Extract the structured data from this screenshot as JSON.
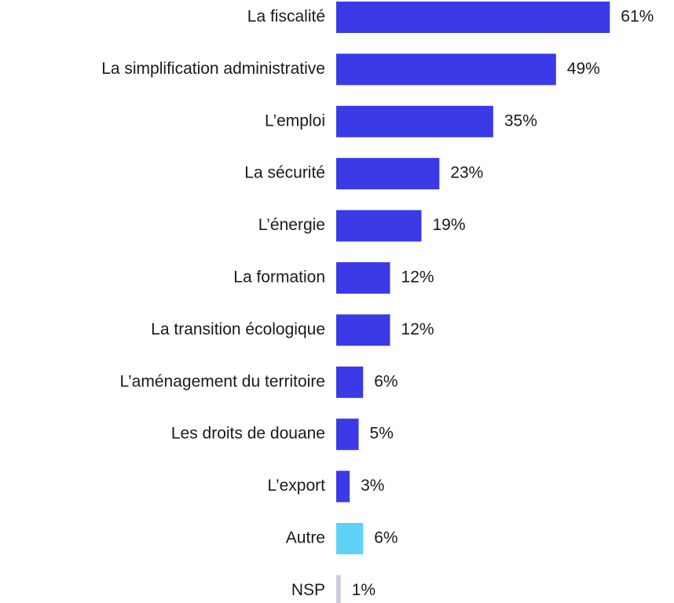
{
  "chart_data": {
    "type": "barh",
    "categories": [
      "La fiscalité",
      "La simplification administrative",
      "L’emploi",
      "La sécurité",
      "L’énergie",
      "La formation",
      "La transition écologique",
      "L’aménagement du territoire",
      "Les droits de douane",
      "L’export",
      "Autre",
      "NSP"
    ],
    "values": [
      61,
      49,
      35,
      23,
      19,
      12,
      12,
      6,
      5,
      3,
      6,
      1
    ],
    "value_labels": [
      "61%",
      "49%",
      "35%",
      "23%",
      "19%",
      "12%",
      "12%",
      "6%",
      "5%",
      "3%",
      "6%",
      "1%"
    ],
    "colors": [
      "#3a3ae6",
      "#3a3ae6",
      "#3a3ae6",
      "#3a3ae6",
      "#3a3ae6",
      "#3a3ae6",
      "#3a3ae6",
      "#3a3ae6",
      "#3a3ae6",
      "#3a3ae6",
      "#5fd3f7",
      "#c9cde0"
    ]
  }
}
